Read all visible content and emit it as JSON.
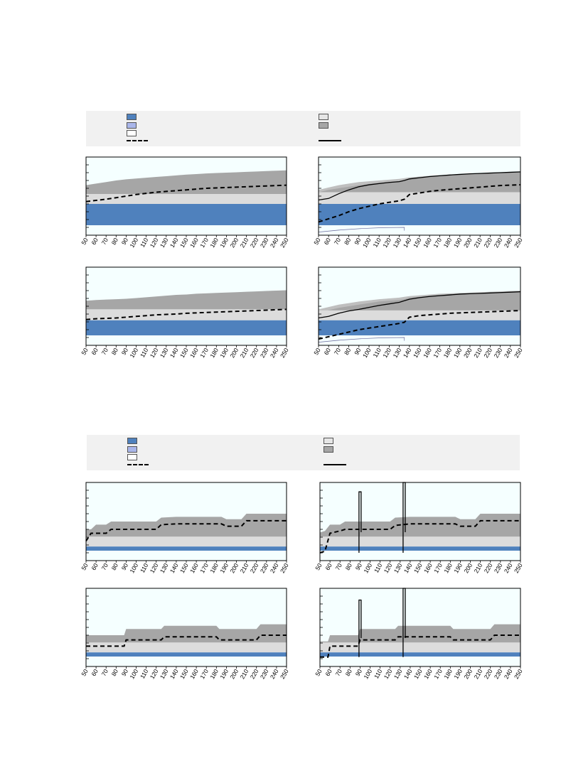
{
  "legend": {
    "entries": [
      {
        "symbol": "swatch",
        "color": "#4f81bd",
        "label": ""
      },
      {
        "symbol": "swatch",
        "color": "#aab6ea",
        "label": ""
      },
      {
        "symbol": "swatch",
        "color": "#ffffff",
        "label": ""
      },
      {
        "symbol": "dashed-line",
        "color": "#000000",
        "label": ""
      },
      {
        "symbol": "swatch",
        "color": "#e6e6e6",
        "label": ""
      },
      {
        "symbol": "swatch",
        "color": "#a6a6a6",
        "label": ""
      },
      {
        "symbol": "solid-line",
        "color": "#000000",
        "label": ""
      }
    ]
  },
  "colors": {
    "plot_bg": "#f5ffff",
    "blue_band": "#4f81bd",
    "light_band": "#dcdcdc",
    "gray_band": "#a6a6a6",
    "gray_light": "#bfbfbf",
    "legend_bg": "#f1f1f1"
  },
  "chart_data": [
    {
      "type": "area",
      "panel": "top-left",
      "x_ticks": [
        "50",
        "60",
        "70",
        "80",
        "90",
        "100",
        "110",
        "120",
        "130",
        "140",
        "150",
        "160",
        "170",
        "180",
        "190",
        "200",
        "210",
        "220",
        "230",
        "240",
        "250"
      ],
      "xlim": [
        50,
        250
      ],
      "ylim": [
        0,
        100
      ],
      "blue_top": 40,
      "light_top": 40,
      "gray_light_upper": [],
      "x": [
        50,
        60,
        70,
        80,
        90,
        100,
        110,
        120,
        130,
        140,
        150,
        160,
        170,
        180,
        190,
        200,
        210,
        220,
        230,
        240,
        250
      ],
      "gray_top": [
        64,
        66,
        68,
        70,
        71.5,
        72.5,
        73.5,
        74.5,
        75.5,
        76.5,
        77.5,
        78.2,
        79,
        79.6,
        80,
        80.5,
        81,
        81.5,
        82,
        82.5,
        83
      ],
      "dashed": [
        43,
        44.5,
        46,
        48,
        50,
        52,
        53.5,
        55,
        56,
        57,
        58,
        59,
        60,
        60.5,
        61,
        61.5,
        62,
        62.5,
        63,
        63.5,
        64
      ],
      "solid": [],
      "thin_line": []
    },
    {
      "type": "area",
      "panel": "top-right",
      "x_ticks": [
        "50",
        "60",
        "70",
        "80",
        "90",
        "100",
        "110",
        "120",
        "130",
        "140",
        "150",
        "160",
        "170",
        "180",
        "190",
        "200",
        "210",
        "220",
        "230",
        "240",
        "250"
      ],
      "xlim": [
        50,
        250
      ],
      "ylim": [
        0,
        100
      ],
      "blue_top": 40,
      "light_top": 55,
      "x": [
        50,
        60,
        70,
        80,
        90,
        100,
        110,
        120,
        130,
        135,
        140,
        150,
        160,
        170,
        180,
        190,
        200,
        210,
        220,
        230,
        240,
        250
      ],
      "gray_top": [
        55,
        58,
        60,
        62,
        64,
        65.5,
        67,
        68,
        69,
        70,
        72,
        73.5,
        75,
        76,
        77,
        77.8,
        78.5,
        79,
        79.5,
        80,
        80.5,
        81
      ],
      "gray_light_upper": [
        58,
        61,
        64,
        66,
        68,
        69,
        70,
        71,
        72,
        73,
        74,
        75,
        76,
        76.8,
        77.5,
        78,
        78.6,
        79.2,
        79.7,
        80.2,
        80.6,
        81
      ],
      "dashed": [
        17,
        21,
        25,
        30,
        34,
        37,
        40,
        42,
        44,
        46,
        52,
        54,
        56,
        57.5,
        58.5,
        59.5,
        60.5,
        61.5,
        62.5,
        63.5,
        64,
        64.5
      ],
      "solid": [
        45,
        47,
        53,
        58,
        62,
        64.5,
        66,
        67.5,
        68.5,
        70,
        72,
        73.5,
        75,
        76,
        77,
        77.8,
        78.5,
        79,
        79.5,
        80,
        80.5,
        81
      ],
      "thin_line": [
        {
          "x": 50,
          "y": 4
        },
        {
          "x": 135,
          "y": 10
        }
      ]
    },
    {
      "type": "area",
      "panel": "middle-left",
      "x_ticks": [
        "50",
        "60",
        "70",
        "80",
        "90",
        "100",
        "110",
        "120",
        "130",
        "140",
        "150",
        "160",
        "170",
        "180",
        "190",
        "200",
        "210",
        "220",
        "230",
        "240",
        "250"
      ],
      "xlim": [
        50,
        250
      ],
      "ylim": [
        0,
        100
      ],
      "blue_top": 32,
      "light_top": 46,
      "x": [
        50,
        60,
        70,
        80,
        90,
        100,
        110,
        120,
        130,
        140,
        150,
        160,
        170,
        180,
        190,
        200,
        210,
        220,
        230,
        240,
        250
      ],
      "gray_top": [
        57,
        58,
        58.5,
        59,
        59.5,
        60.5,
        61.5,
        62.5,
        63.5,
        64.5,
        65,
        66,
        66.5,
        67,
        67.5,
        68,
        68.5,
        69,
        69.5,
        70,
        70.5
      ],
      "gray_light_upper": [],
      "dashed": [
        33,
        34,
        34.5,
        35,
        36,
        37,
        38,
        39,
        39.5,
        40,
        41,
        41.5,
        42,
        42.5,
        43,
        43.5,
        44,
        44.5,
        45,
        45.5,
        46
      ],
      "solid": [],
      "thin_line": []
    },
    {
      "type": "area",
      "panel": "middle-right",
      "x_ticks": [
        "50",
        "60",
        "70",
        "80",
        "90",
        "100",
        "110",
        "120",
        "130",
        "140",
        "150",
        "160",
        "170",
        "180",
        "190",
        "200",
        "210",
        "220",
        "230",
        "240",
        "250"
      ],
      "xlim": [
        50,
        250
      ],
      "ylim": [
        0,
        100
      ],
      "blue_top": 32,
      "light_top": 42,
      "x": [
        50,
        60,
        70,
        80,
        90,
        100,
        110,
        120,
        130,
        135,
        140,
        150,
        160,
        170,
        180,
        190,
        200,
        210,
        220,
        230,
        240,
        250
      ],
      "gray_top": [
        42,
        45,
        48,
        50,
        52,
        54,
        56,
        57,
        58,
        59,
        61,
        62,
        63.5,
        64.5,
        65.5,
        66,
        66.5,
        67,
        67.5,
        68,
        68.5,
        69
      ],
      "gray_light_upper": [
        46,
        49,
        52,
        54,
        56,
        57.5,
        59,
        60,
        61,
        62,
        63,
        64,
        65,
        66,
        66.5,
        67,
        67.5,
        68,
        68.5,
        69,
        69.5,
        70
      ],
      "dashed": [
        8,
        11,
        14,
        17,
        20,
        22,
        24,
        26,
        28,
        29.5,
        36,
        38,
        39,
        40,
        41,
        41.5,
        42,
        42.5,
        43,
        43.5,
        44,
        44.5
      ],
      "solid": [
        35,
        37,
        41,
        44,
        46,
        48.5,
        51,
        53,
        55,
        57,
        59,
        61,
        62.5,
        63.5,
        64.5,
        65.5,
        66,
        66.5,
        67,
        67.5,
        68,
        68.5
      ],
      "thin_line": [
        {
          "x": 50,
          "y": 4
        },
        {
          "x": 135,
          "y": 10
        }
      ]
    },
    {
      "type": "area",
      "panel": "lower-left",
      "x_ticks": [
        "50",
        "60",
        "70",
        "80",
        "90",
        "100",
        "110",
        "120",
        "130",
        "140",
        "150",
        "160",
        "170",
        "180",
        "190",
        "200",
        "210",
        "220",
        "230",
        "240",
        "250"
      ],
      "xlim": [
        50,
        250
      ],
      "ylim": [
        0,
        100
      ],
      "blue_top": 18,
      "light_top": 28,
      "x": [
        50,
        55,
        60,
        70,
        75,
        120,
        125,
        140,
        185,
        190,
        205,
        210,
        250
      ],
      "gray_top": [
        40,
        40,
        46,
        46,
        50,
        50,
        55,
        56,
        56,
        53,
        53,
        60,
        60
      ],
      "gray_light_upper": [],
      "dashed": [
        25,
        35,
        35,
        35,
        40,
        40,
        46,
        47,
        47,
        44,
        44,
        51,
        51
      ],
      "solid": [],
      "thin_line": []
    },
    {
      "type": "area",
      "panel": "lower-right",
      "x_ticks": [
        "50",
        "60",
        "70",
        "80",
        "90",
        "100",
        "110",
        "120",
        "130",
        "140",
        "150",
        "160",
        "170",
        "180",
        "190",
        "200",
        "210",
        "220",
        "230",
        "240",
        "250"
      ],
      "xlim": [
        50,
        250
      ],
      "ylim": [
        0,
        100
      ],
      "blue_top": 18,
      "light_top": 28,
      "x": [
        50,
        55,
        60,
        70,
        75,
        120,
        125,
        140,
        185,
        190,
        205,
        210,
        250
      ],
      "gray_top": [
        36,
        38,
        46,
        46,
        50,
        50,
        55,
        56,
        56,
        53,
        53,
        60,
        60
      ],
      "gray_light_upper": [],
      "dashed": [
        10,
        12,
        35,
        38,
        40,
        40,
        45,
        47,
        47,
        44,
        44,
        51,
        51
      ],
      "solid": [],
      "spikes": [
        {
          "x": 90,
          "y": 88
        },
        {
          "x": 134,
          "y": 100
        }
      ],
      "thin_line": []
    },
    {
      "type": "area",
      "panel": "bottom-left",
      "x_ticks": [
        "50",
        "60",
        "70",
        "80",
        "90",
        "100",
        "110",
        "120",
        "130",
        "140",
        "150",
        "160",
        "170",
        "180",
        "190",
        "200",
        "210",
        "220",
        "230",
        "240",
        "250"
      ],
      "xlim": [
        50,
        250
      ],
      "ylim": [
        0,
        100
      ],
      "blue_top": 18,
      "light_top": 28,
      "x": [
        50,
        88,
        90,
        125,
        128,
        180,
        183,
        220,
        224,
        250
      ],
      "gray_top": [
        40,
        40,
        48,
        48,
        52,
        52,
        48,
        48,
        54,
        54
      ],
      "gray_light_upper": [],
      "dashed": [
        26,
        26,
        34,
        34,
        38,
        38,
        34,
        34,
        40,
        40
      ],
      "solid": [],
      "thin_line": []
    },
    {
      "type": "area",
      "panel": "bottom-right",
      "x_ticks": [
        "50",
        "60",
        "70",
        "80",
        "90",
        "100",
        "110",
        "120",
        "130",
        "140",
        "150",
        "160",
        "170",
        "180",
        "190",
        "200",
        "210",
        "220",
        "230",
        "240",
        "250"
      ],
      "xlim": [
        50,
        250
      ],
      "ylim": [
        0,
        100
      ],
      "blue_top": 18,
      "light_top": 28,
      "x": [
        50,
        58,
        60,
        88,
        90,
        125,
        128,
        180,
        183,
        220,
        224,
        250
      ],
      "gray_top": [
        32,
        32,
        40,
        40,
        48,
        48,
        52,
        52,
        48,
        48,
        54,
        54
      ],
      "gray_light_upper": [],
      "dashed": [
        12,
        12,
        26,
        26,
        34,
        34,
        38,
        38,
        34,
        34,
        40,
        40
      ],
      "solid": [],
      "spikes": [
        {
          "x": 90,
          "y": 85
        },
        {
          "x": 134,
          "y": 100
        }
      ],
      "thin_line": []
    }
  ]
}
